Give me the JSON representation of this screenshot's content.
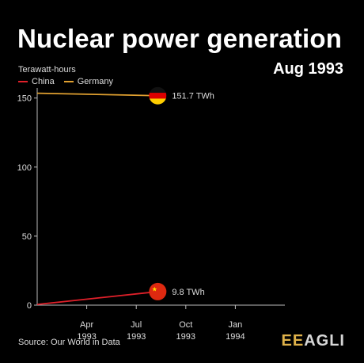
{
  "title": "Nuclear power generation",
  "date_label": "Aug 1993",
  "source": "Source: Our World in Data",
  "logo": {
    "part1": "EE",
    "part2": "AGLI",
    "color1": "#e0b24a",
    "color2": "#d7d7d7"
  },
  "chart_data": {
    "type": "line",
    "unit_label": "Terawatt-hours",
    "ylim": [
      0,
      155
    ],
    "yticks": [
      0,
      50,
      100,
      150
    ],
    "xticks": [
      {
        "t": 3,
        "line1": "Apr",
        "line2": "1993"
      },
      {
        "t": 6,
        "line1": "Jul",
        "line2": "1993"
      },
      {
        "t": 9,
        "line1": "Oct",
        "line2": "1993"
      },
      {
        "t": 12,
        "line1": "Jan",
        "line2": "1994"
      }
    ],
    "xlim": [
      0,
      15
    ],
    "series": [
      {
        "name": "China",
        "color": "#e0202a",
        "points": [
          [
            0,
            0.5
          ],
          [
            7.3,
            9.8
          ]
        ],
        "end_label": "9.8 TWh",
        "flag": "china-flag"
      },
      {
        "name": "Germany",
        "color": "#e0a030",
        "points": [
          [
            0,
            153.5
          ],
          [
            7.3,
            151.7
          ]
        ],
        "end_label": "151.7 TWh",
        "flag": "germany-flag"
      }
    ]
  }
}
